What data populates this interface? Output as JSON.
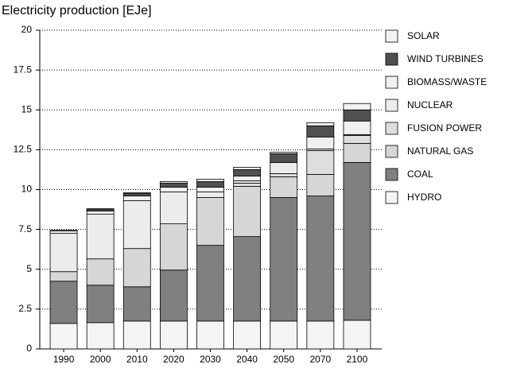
{
  "chart_data": {
    "type": "stacked_bar",
    "title": "Electricity production [EJe]",
    "categories": [
      "1990",
      "2000",
      "2010",
      "2020",
      "2030",
      "2040",
      "2050",
      "2070",
      "2100"
    ],
    "series": [
      {
        "name": "HYDRO",
        "color": "#f4f4f4",
        "values": [
          1.6,
          1.65,
          1.75,
          1.75,
          1.75,
          1.75,
          1.75,
          1.75,
          1.8
        ]
      },
      {
        "name": "COAL",
        "color": "#808080",
        "values": [
          2.65,
          2.35,
          2.15,
          3.2,
          4.75,
          5.3,
          7.75,
          7.85,
          9.9
        ]
      },
      {
        "name": "NATURAL GAS",
        "color": "#d6d6d6",
        "values": [
          0.6,
          1.65,
          2.4,
          2.9,
          3.0,
          3.15,
          1.3,
          1.35,
          1.2
        ]
      },
      {
        "name": "FUSION POWER",
        "color": "#dedede",
        "values": [
          0,
          0,
          0,
          0,
          0,
          0.2,
          0.2,
          1.5,
          0.5
        ]
      },
      {
        "name": "NUCLEAR",
        "color": "#ececec",
        "values": [
          2.4,
          2.8,
          3.0,
          2.0,
          0.35,
          0.15,
          0.7,
          0.1,
          0.05
        ]
      },
      {
        "name": "BIOMASS/WASTE",
        "color": "#f0f0f0",
        "values": [
          0.15,
          0.2,
          0.3,
          0.3,
          0.3,
          0.3,
          0,
          0.75,
          0.85
        ]
      },
      {
        "name": "WIND TURBINES",
        "color": "#505050",
        "values": [
          0,
          0.1,
          0.15,
          0.25,
          0.35,
          0.4,
          0.55,
          0.7,
          0.7
        ]
      },
      {
        "name": "SOLAR",
        "color": "#f2f2f2",
        "values": [
          0.05,
          0.05,
          0.05,
          0.1,
          0.15,
          0.15,
          0.1,
          0.2,
          0.4
        ]
      }
    ],
    "ylim": [
      0,
      20
    ],
    "yticks": [
      0,
      2.5,
      5,
      7.5,
      10,
      12.5,
      15,
      17.5,
      20
    ],
    "grid": true,
    "legend": "right"
  }
}
